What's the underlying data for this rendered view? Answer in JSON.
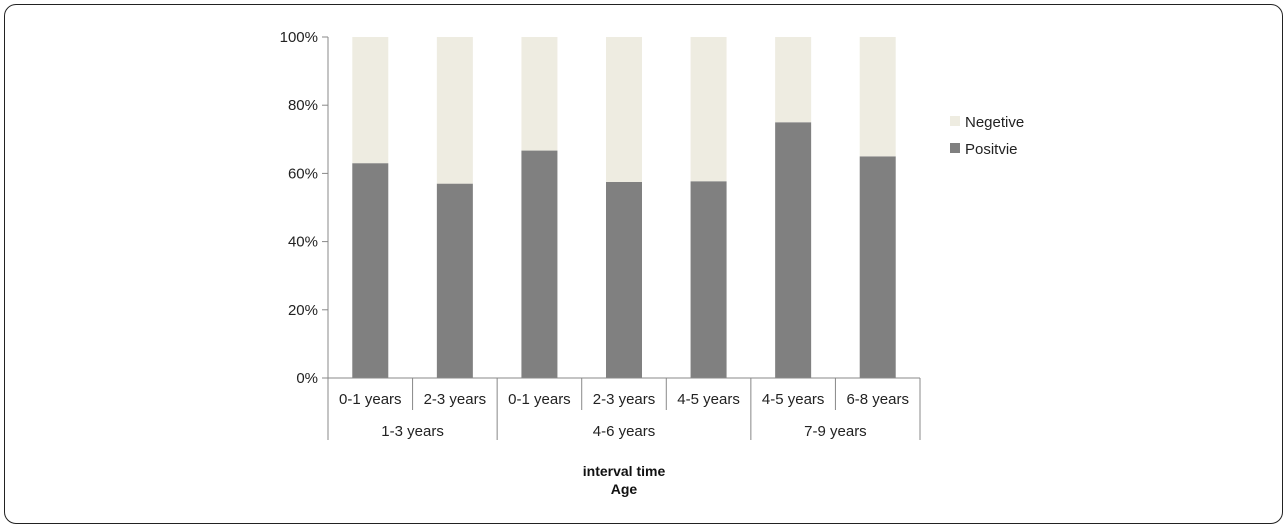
{
  "chart_data": {
    "type": "bar",
    "stacked": true,
    "percent": true,
    "categories": [
      "0-1 years",
      "2-3 years",
      "0-1 years",
      "2-3 years",
      "4-5 years",
      "4-5 years",
      "6-8 years"
    ],
    "groups": [
      {
        "label": "1-3 years",
        "count": 2
      },
      {
        "label": "4-6 years",
        "count": 3
      },
      {
        "label": "7-9 years",
        "count": 2
      }
    ],
    "series": [
      {
        "name": "Positvie",
        "color": "#808080",
        "values": [
          63,
          57,
          66.7,
          57.5,
          57.7,
          75,
          65
        ]
      },
      {
        "name": "Negetive",
        "color": "#eeece1",
        "values": [
          37,
          43,
          33.3,
          42.5,
          42.3,
          25,
          35
        ]
      }
    ],
    "yticks": [
      "0%",
      "20%",
      "40%",
      "60%",
      "80%",
      "100%"
    ],
    "ylim": [
      0,
      100
    ],
    "xlabel": "interval time",
    "xlabel2": "Age",
    "legend_position": "right"
  }
}
